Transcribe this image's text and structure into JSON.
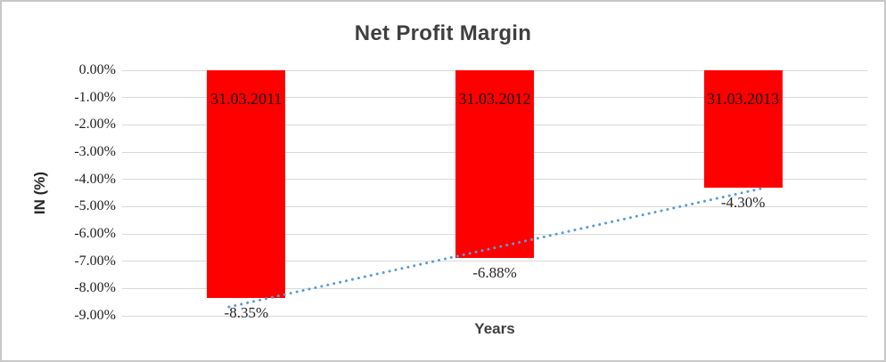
{
  "chart_data": {
    "type": "bar",
    "title": "Net Profit Margin",
    "xlabel": "Years",
    "ylabel": "IN (%)",
    "categories": [
      "31.03.2011",
      "31.03.2012",
      "31.03.2013"
    ],
    "values": [
      -8.35,
      -6.88,
      -4.3
    ],
    "value_labels": [
      "-8.35%",
      "-6.88%",
      "-4.30%"
    ],
    "ylim": [
      -9,
      0
    ],
    "ytick_labels": [
      "0.00%",
      "-1.00%",
      "-2.00%",
      "-3.00%",
      "-4.00%",
      "-5.00%",
      "-6.00%",
      "-7.00%",
      "-8.00%",
      "-9.00%"
    ],
    "grid": true,
    "legend": "none",
    "bar_color": "#FF0000",
    "gridline_color": "#D9D9D9",
    "trendline": {
      "type": "linear",
      "style": "dotted",
      "color": "#5B9BD5"
    }
  }
}
